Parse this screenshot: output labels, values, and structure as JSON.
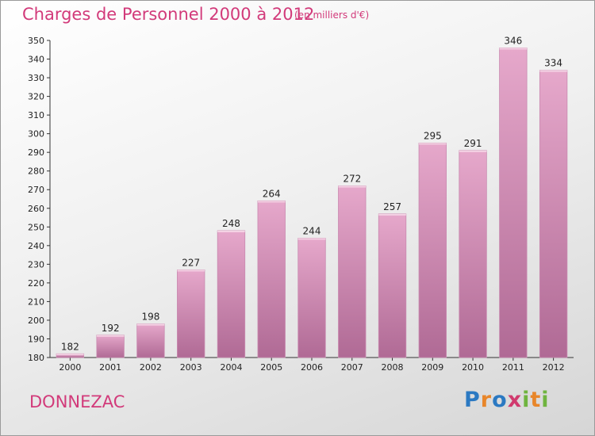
{
  "header": {
    "title": "Charges de Personnel 2000 à 2012",
    "subtitle": "(en milliers d'€)"
  },
  "footer": {
    "commune": "DONNEZAC",
    "logo_letters": [
      {
        "ch": "P",
        "color": "#2b79c2"
      },
      {
        "ch": "r",
        "color": "#e8862a"
      },
      {
        "ch": "o",
        "color": "#2b79c2"
      },
      {
        "ch": "x",
        "color": "#d03a6e"
      },
      {
        "ch": "i",
        "color": "#6fb43f"
      },
      {
        "ch": "t",
        "color": "#e8862a"
      },
      {
        "ch": "i",
        "color": "#6fb43f"
      }
    ]
  },
  "colors": {
    "accent": "#d23a7a",
    "bar_top": "#e6a8cb",
    "bar_bottom": "#b06a95"
  },
  "chart_data": {
    "type": "bar",
    "categories": [
      "2000",
      "2001",
      "2002",
      "2003",
      "2004",
      "2005",
      "2006",
      "2007",
      "2008",
      "2009",
      "2010",
      "2011",
      "2012"
    ],
    "values": [
      182,
      192,
      198,
      227,
      248,
      264,
      244,
      272,
      257,
      295,
      291,
      346,
      334
    ],
    "ylim": [
      180,
      350
    ],
    "yticks": [
      180,
      190,
      200,
      210,
      220,
      230,
      240,
      250,
      260,
      270,
      280,
      290,
      300,
      310,
      320,
      330,
      340,
      350
    ],
    "grid": false,
    "title": "Charges de Personnel 2000 à 2012",
    "unit": "(en milliers d'€)"
  }
}
